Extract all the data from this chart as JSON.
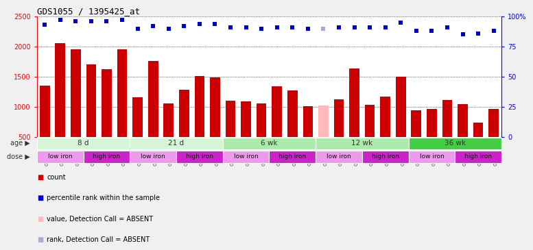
{
  "title": "GDS1055 / 1395425_at",
  "samples": [
    "GSM33580",
    "GSM33581",
    "GSM33582",
    "GSM33577",
    "GSM33578",
    "GSM33579",
    "GSM33574",
    "GSM33575",
    "GSM33576",
    "GSM33571",
    "GSM33572",
    "GSM33573",
    "GSM33568",
    "GSM33569",
    "GSM33570",
    "GSM33565",
    "GSM33566",
    "GSM33567",
    "GSM33562",
    "GSM33563",
    "GSM33564",
    "GSM33559",
    "GSM33560",
    "GSM33561",
    "GSM33555",
    "GSM33556",
    "GSM33557",
    "GSM33551",
    "GSM33552",
    "GSM33553"
  ],
  "bar_values": [
    1350,
    2060,
    1950,
    1700,
    1620,
    1950,
    1160,
    1760,
    1060,
    1280,
    1510,
    1490,
    1100,
    1090,
    1060,
    1340,
    1270,
    1010,
    1020,
    1120,
    1640,
    1030,
    1170,
    1500,
    940,
    970,
    1110,
    1050,
    740,
    960
  ],
  "absent_bar_indices": [
    18
  ],
  "percentile_ranks": [
    93,
    97,
    96,
    96,
    96,
    97,
    90,
    92,
    90,
    92,
    94,
    94,
    91,
    91,
    90,
    91,
    91,
    90,
    90,
    91,
    91,
    91,
    91,
    95,
    88,
    88,
    91,
    85,
    86,
    88
  ],
  "absent_rank_indices": [
    18
  ],
  "ylim_left": [
    500,
    2500
  ],
  "ylim_right": [
    0,
    100
  ],
  "yticks_left": [
    500,
    1000,
    1500,
    2000,
    2500
  ],
  "yticks_right": [
    0,
    25,
    50,
    75,
    100
  ],
  "ytick_right_labels": [
    "0",
    "25",
    "50",
    "75",
    "100%"
  ],
  "age_groups": [
    {
      "label": "8 d",
      "start": 0,
      "end": 6
    },
    {
      "label": "21 d",
      "start": 6,
      "end": 12
    },
    {
      "label": "6 wk",
      "start": 12,
      "end": 18
    },
    {
      "label": "12 wk",
      "start": 18,
      "end": 24
    },
    {
      "label": "36 wk",
      "start": 24,
      "end": 30
    }
  ],
  "age_colors": [
    "#d6f5d6",
    "#d6f5d6",
    "#aaeaaa",
    "#aaeaaa",
    "#44cc44"
  ],
  "dose_groups": [
    {
      "label": "low iron",
      "start": 0,
      "end": 3
    },
    {
      "label": "high iron",
      "start": 3,
      "end": 6
    },
    {
      "label": "low iron",
      "start": 6,
      "end": 9
    },
    {
      "label": "high iron",
      "start": 9,
      "end": 12
    },
    {
      "label": "low iron",
      "start": 12,
      "end": 15
    },
    {
      "label": "high iron",
      "start": 15,
      "end": 18
    },
    {
      "label": "low iron",
      "start": 18,
      "end": 21
    },
    {
      "label": "high iron",
      "start": 21,
      "end": 24
    },
    {
      "label": "low iron",
      "start": 24,
      "end": 27
    },
    {
      "label": "high iron",
      "start": 27,
      "end": 30
    }
  ],
  "dose_color_low": "#ee99ee",
  "dose_color_high": "#cc22cc",
  "bar_color_normal": "#cc0000",
  "bar_color_absent": "#ffbbbb",
  "dot_color_normal": "#0000cc",
  "dot_color_absent": "#aaaacc",
  "fig_bg": "#f0f0f0",
  "plot_bg": "#ffffff"
}
